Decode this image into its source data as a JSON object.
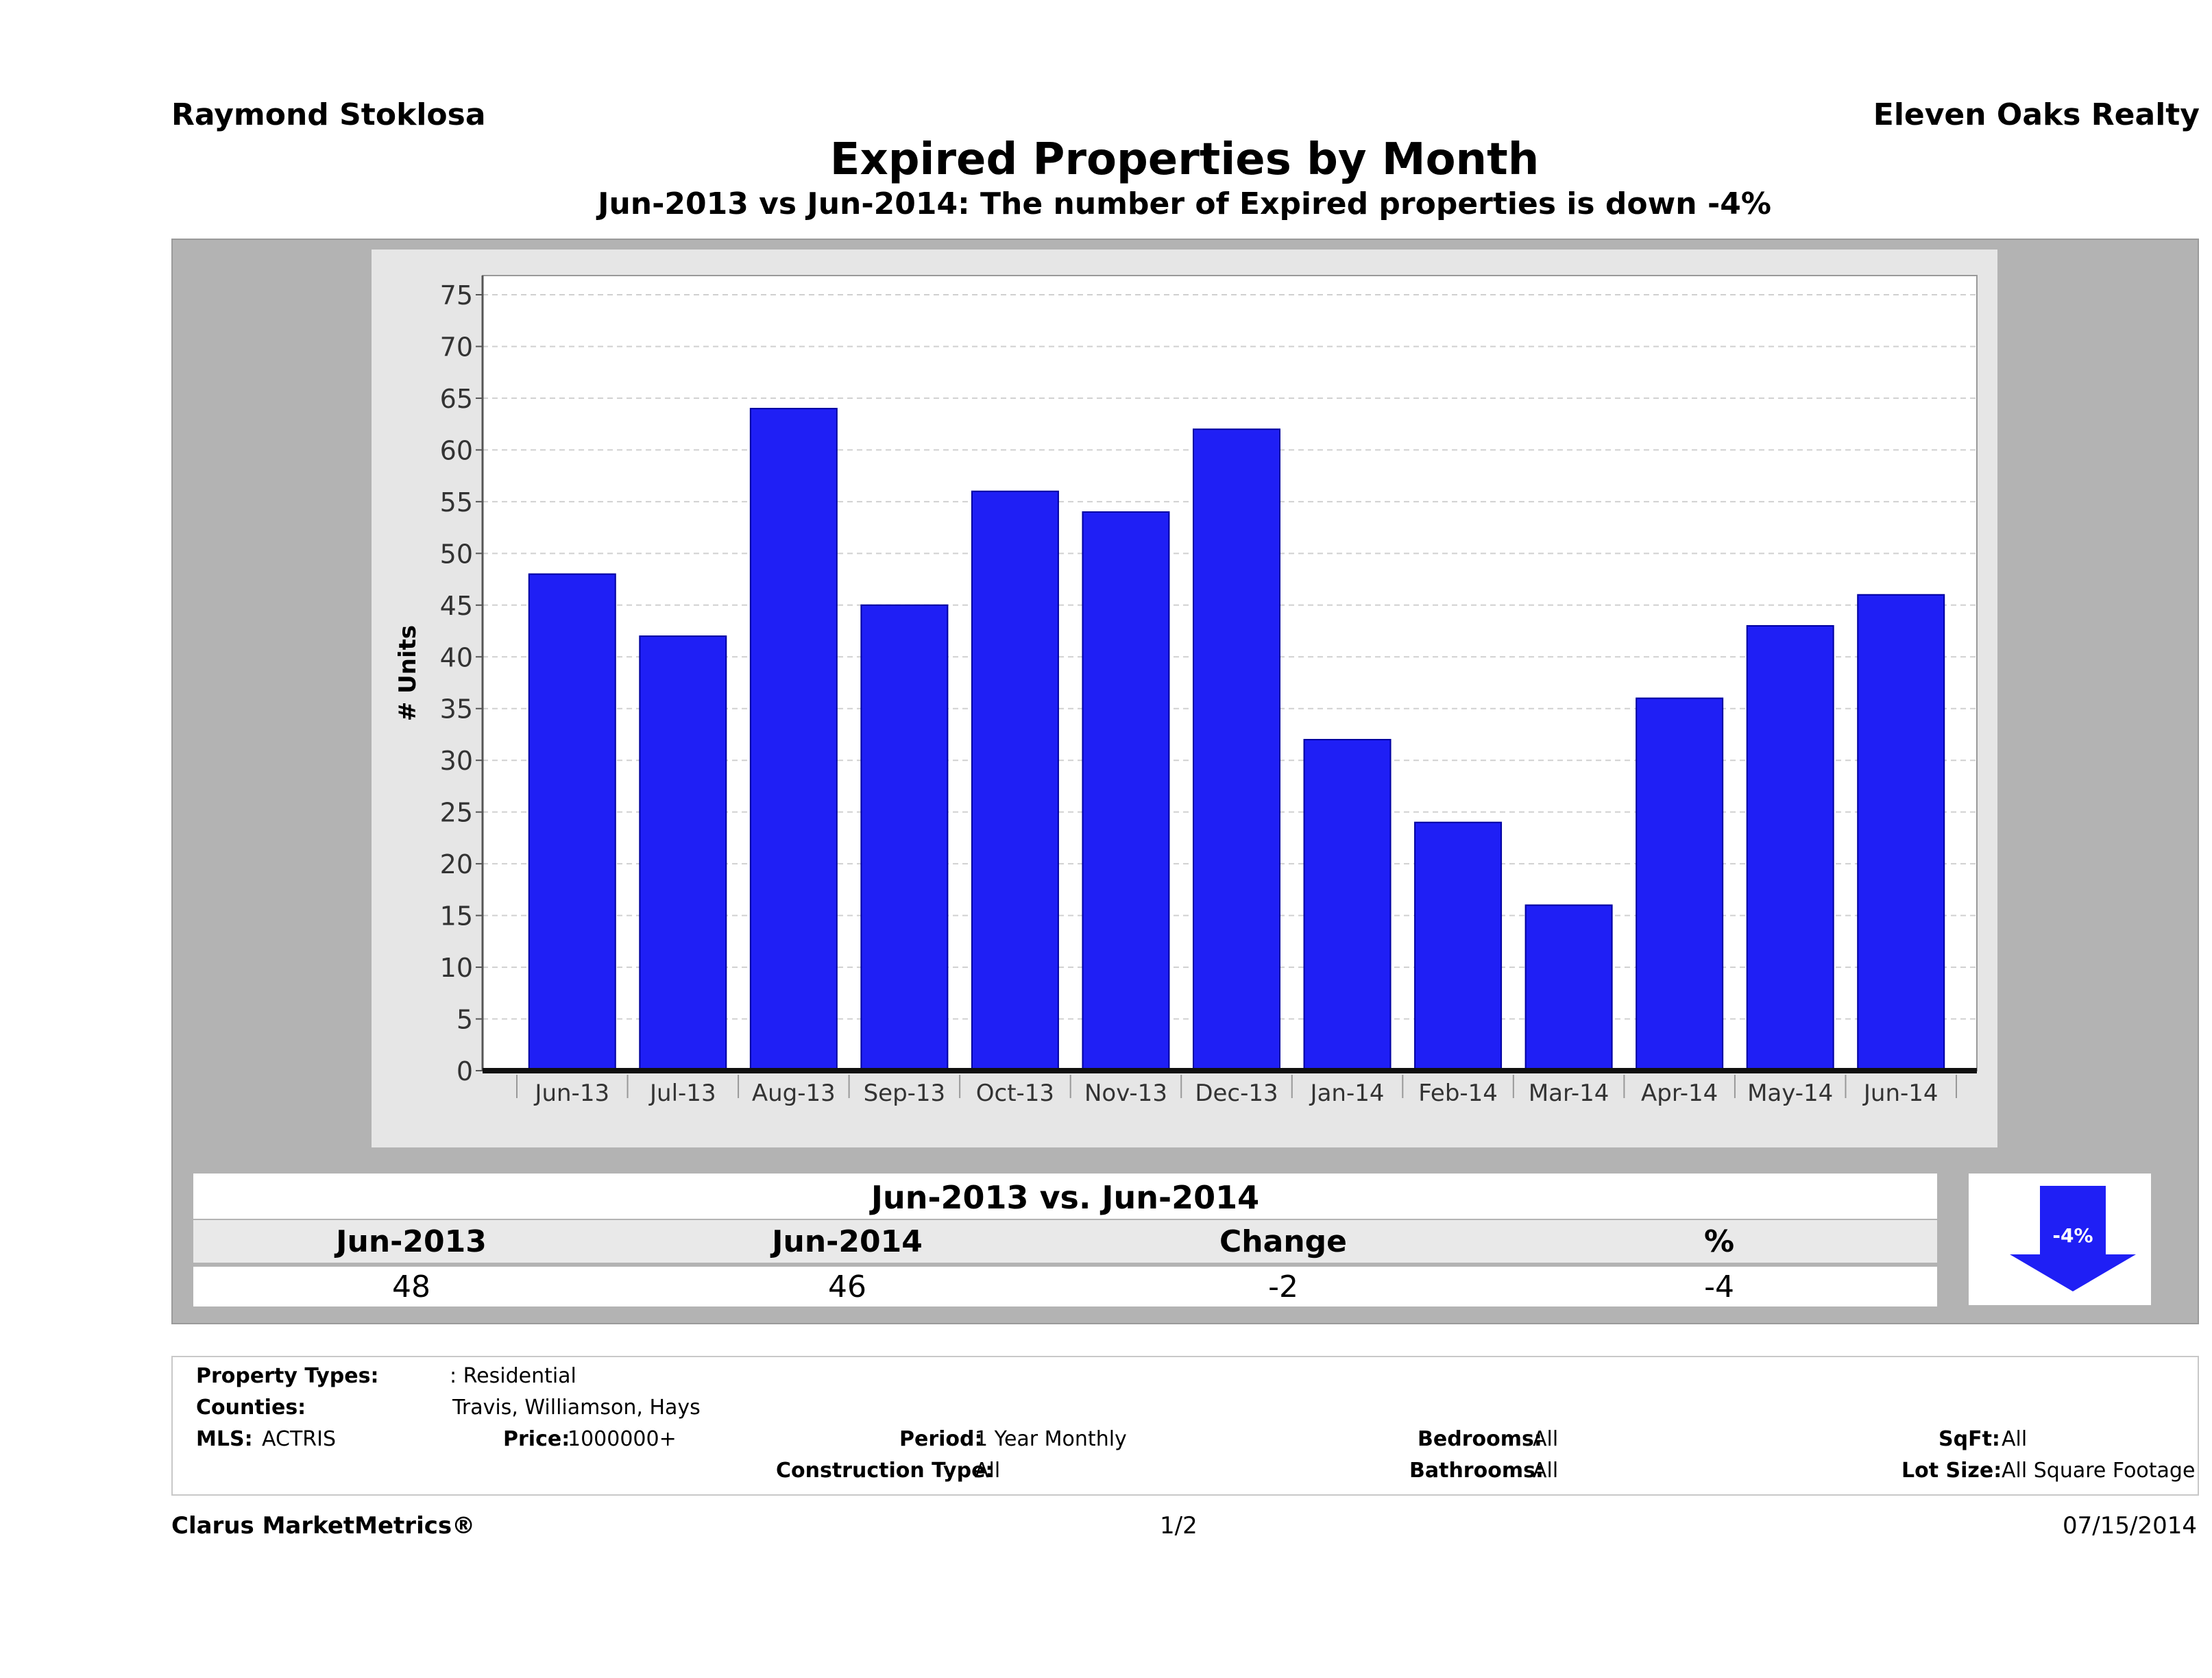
{
  "header": {
    "agent": "Raymond Stoklosa",
    "brokerage": "Eleven Oaks Realty",
    "title": "Expired Properties by Month",
    "subtitle": "Jun-2013 vs Jun-2014: The number of Expired  properties is down -4%"
  },
  "chart_data": {
    "type": "bar",
    "categories": [
      "Jun-13",
      "Jul-13",
      "Aug-13",
      "Sep-13",
      "Oct-13",
      "Nov-13",
      "Dec-13",
      "Jan-14",
      "Feb-14",
      "Mar-14",
      "Apr-14",
      "May-14",
      "Jun-14"
    ],
    "values": [
      48,
      42,
      64,
      45,
      56,
      54,
      62,
      32,
      24,
      16,
      36,
      43,
      46
    ],
    "ylabel": "# Units",
    "xlabel": "",
    "ylim": [
      0,
      75
    ],
    "yticks": [
      0,
      5,
      10,
      15,
      20,
      25,
      30,
      35,
      40,
      45,
      50,
      55,
      60,
      65,
      70,
      75
    ],
    "grid": true,
    "bar_color": "#1f1ff5"
  },
  "comparison": {
    "title": "Jun-2013 vs. Jun-2014",
    "labels": [
      "Jun-2013",
      "Jun-2014",
      "Change",
      "%"
    ],
    "values": [
      "48",
      "46",
      "-2",
      "-4"
    ],
    "arrow_label": "-4%",
    "arrow_color": "#1f1ff5"
  },
  "criteria": {
    "property_types_label": "Property Types:",
    "property_types_value": ": Residential",
    "counties_label": "Counties:",
    "counties_value": "Travis, Williamson, Hays",
    "mls_label": "MLS:",
    "mls_value": "ACTRIS",
    "price_label": "Price:",
    "price_value": "1000000+",
    "period_label": "Period:",
    "period_value": "1 Year Monthly",
    "construction_label": "Construction Type:",
    "construction_value": "All",
    "bedrooms_label": "Bedrooms:",
    "bedrooms_value": "All",
    "bathrooms_label": "Bathrooms:",
    "bathrooms_value": "All",
    "sqft_label": "SqFt:",
    "sqft_value": "All",
    "lotsize_label": "Lot Size:",
    "lotsize_value": "All Square Footage"
  },
  "footer": {
    "brand": "Clarus MarketMetrics®",
    "page": "1/2",
    "date": "07/15/2014"
  }
}
